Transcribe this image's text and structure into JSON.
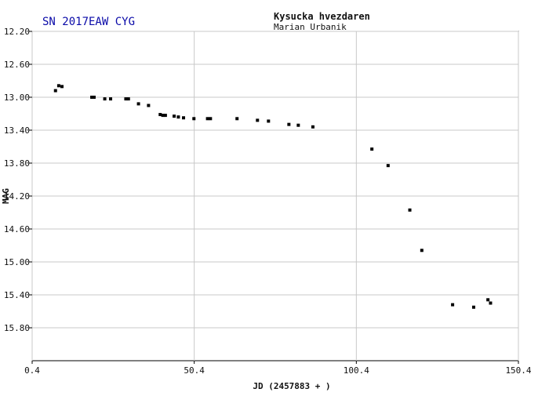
{
  "chart_data": {
    "type": "scatter",
    "title": "SN 2017EAW CYG",
    "observatory": "Kysucka hvezdaren",
    "observer": "Marian Urbanik",
    "xlabel": "JD (2457883 + )",
    "ylabel": "MAG",
    "xlim": [
      0.4,
      150.4
    ],
    "ylim": [
      16.2,
      12.2
    ],
    "x_ticks": [
      0.4,
      50.4,
      100.4,
      150.4
    ],
    "x_tick_labels": [
      "0.4",
      "50.4",
      "100.4",
      "150.4"
    ],
    "y_ticks": [
      12.2,
      12.6,
      13.0,
      13.4,
      13.8,
      14.2,
      14.6,
      15.0,
      15.4,
      15.8
    ],
    "y_tick_labels": [
      "12.20",
      "12.60",
      "13.00",
      "13.40",
      "13.80",
      "14.20",
      "14.60",
      "15.00",
      "15.40",
      "15.80"
    ],
    "grid": true,
    "series": [
      {
        "color": "#000000",
        "points": [
          [
            7.6,
            12.92
          ],
          [
            8.6,
            12.86
          ],
          [
            9.6,
            12.87
          ],
          [
            18.8,
            13.0
          ],
          [
            19.5,
            13.0
          ],
          [
            22.8,
            13.02
          ],
          [
            24.6,
            13.02
          ],
          [
            29.3,
            13.02
          ],
          [
            30.1,
            13.02
          ],
          [
            33.2,
            13.08
          ],
          [
            36.3,
            13.1
          ],
          [
            39.9,
            13.21
          ],
          [
            40.7,
            13.22
          ],
          [
            41.5,
            13.22
          ],
          [
            44.2,
            13.23
          ],
          [
            45.5,
            13.24
          ],
          [
            47.1,
            13.25
          ],
          [
            50.3,
            13.26
          ],
          [
            54.5,
            13.26
          ],
          [
            55.4,
            13.26
          ],
          [
            63.6,
            13.26
          ],
          [
            69.9,
            13.28
          ],
          [
            73.3,
            13.29
          ],
          [
            79.6,
            13.33
          ],
          [
            82.5,
            13.34
          ],
          [
            87.0,
            13.36
          ],
          [
            105.2,
            13.63
          ],
          [
            110.2,
            13.83
          ],
          [
            116.9,
            14.37
          ],
          [
            120.6,
            14.86
          ],
          [
            130.1,
            15.52
          ],
          [
            136.6,
            15.55
          ],
          [
            141.0,
            15.46
          ],
          [
            141.8,
            15.5
          ]
        ]
      }
    ]
  }
}
